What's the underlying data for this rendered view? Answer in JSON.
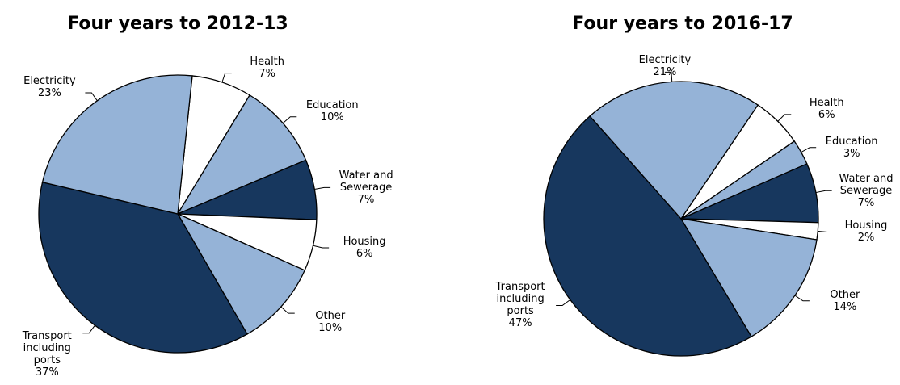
{
  "chart_data": [
    {
      "type": "pie",
      "title": "Four years to 2012-13",
      "categories": [
        "Health",
        "Education",
        "Water and Sewerage",
        "Housing",
        "Other",
        "Transport including ports",
        "Electricity"
      ],
      "values": [
        7,
        10,
        7,
        6,
        10,
        37,
        23
      ],
      "value_labels": [
        "7%",
        "10%",
        "7%",
        "6%",
        "10%",
        "37%",
        "23%"
      ],
      "colors": [
        "#ffffff",
        "#95b3d7",
        "#17375e",
        "#ffffff",
        "#95b3d7",
        "#17375e",
        "#95b3d7"
      ]
    },
    {
      "type": "pie",
      "title": "Four years to 2016-17",
      "categories": [
        "Health",
        "Education",
        "Water and Sewerage",
        "Housing",
        "Other",
        "Transport including ports",
        "Electricity"
      ],
      "values": [
        6,
        3,
        7,
        2,
        14,
        47,
        21
      ],
      "value_labels": [
        "6%",
        "3%",
        "7%",
        "2%",
        "14%",
        "47%",
        "21%"
      ],
      "colors": [
        "#ffffff",
        "#95b3d7",
        "#17375e",
        "#ffffff",
        "#95b3d7",
        "#17375e",
        "#95b3d7"
      ]
    }
  ]
}
